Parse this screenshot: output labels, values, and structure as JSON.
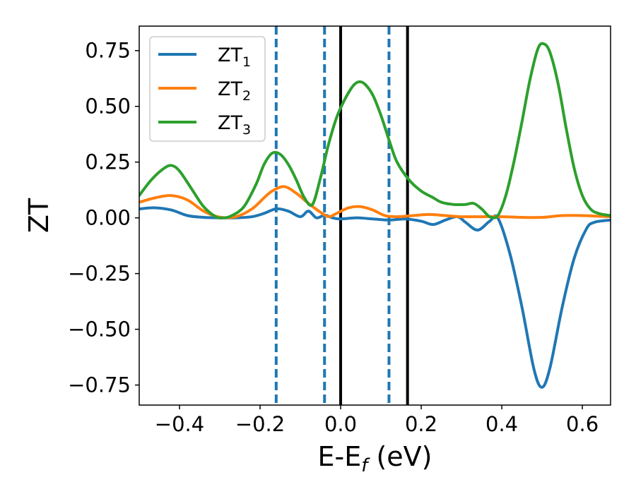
{
  "chart_data": {
    "type": "line",
    "xlabel": "E-E_f (eV)",
    "xlabel_parts": {
      "base": "E-E",
      "sub": "f",
      "suffix": " (eV)"
    },
    "ylabel": "ZT",
    "xlim": [
      -0.5,
      0.67
    ],
    "ylim": [
      -0.84,
      0.86
    ],
    "xticks": [
      -0.4,
      -0.2,
      0.0,
      0.2,
      0.4,
      0.6
    ],
    "xtick_labels": [
      "−0.4",
      "−0.2",
      "0.0",
      "0.2",
      "0.4",
      "0.6"
    ],
    "yticks": [
      0.75,
      0.5,
      0.25,
      0.0,
      -0.25,
      -0.5,
      -0.75
    ],
    "ytick_labels": [
      "0.75",
      "0.50",
      "0.25",
      "0.00",
      "−0.25",
      "−0.50",
      "−0.75"
    ],
    "grid": false,
    "legend_position": "top-left",
    "series": [
      {
        "name": "ZT_1",
        "legend_base": "ZT",
        "legend_sub": "1",
        "color": "#1f77b4",
        "x": [
          -0.5,
          -0.46,
          -0.42,
          -0.38,
          -0.34,
          -0.3,
          -0.26,
          -0.22,
          -0.19,
          -0.16,
          -0.13,
          -0.1,
          -0.08,
          -0.06,
          -0.04,
          -0.02,
          0.0,
          0.04,
          0.08,
          0.12,
          0.16,
          0.2,
          0.23,
          0.26,
          0.29,
          0.31,
          0.34,
          0.37,
          0.39,
          0.42,
          0.45,
          0.48,
          0.5,
          0.52,
          0.55,
          0.58,
          0.61,
          0.63,
          0.67
        ],
        "y": [
          0.04,
          0.045,
          0.035,
          0.01,
          0.002,
          0.0,
          0.0,
          0.005,
          0.02,
          0.04,
          0.03,
          0.005,
          0.03,
          0.0,
          0.012,
          0.0,
          -0.005,
          0.0,
          -0.005,
          -0.01,
          -0.005,
          -0.015,
          -0.03,
          -0.01,
          0.005,
          -0.02,
          -0.055,
          -0.015,
          0.0,
          -0.16,
          -0.4,
          -0.68,
          -0.76,
          -0.67,
          -0.4,
          -0.18,
          -0.05,
          -0.02,
          -0.01
        ]
      },
      {
        "name": "ZT_2",
        "legend_base": "ZT",
        "legend_sub": "2",
        "color": "#ff7f0e",
        "x": [
          -0.5,
          -0.46,
          -0.42,
          -0.38,
          -0.34,
          -0.3,
          -0.26,
          -0.22,
          -0.19,
          -0.17,
          -0.14,
          -0.11,
          -0.08,
          -0.05,
          -0.03,
          -0.01,
          0.02,
          0.05,
          0.08,
          0.11,
          0.14,
          0.18,
          0.22,
          0.26,
          0.3,
          0.35,
          0.4,
          0.45,
          0.5,
          0.55,
          0.6,
          0.67
        ],
        "y": [
          0.07,
          0.09,
          0.1,
          0.08,
          0.03,
          0.003,
          0.005,
          0.04,
          0.09,
          0.12,
          0.14,
          0.11,
          0.065,
          0.025,
          0.005,
          0.02,
          0.045,
          0.05,
          0.035,
          0.01,
          0.005,
          0.01,
          0.015,
          0.01,
          0.005,
          0.005,
          0.005,
          0.002,
          0.002,
          0.01,
          0.01,
          0.005
        ]
      },
      {
        "name": "ZT_3",
        "legend_base": "ZT",
        "legend_sub": "3",
        "color": "#2ca02c",
        "x": [
          -0.5,
          -0.47,
          -0.44,
          -0.42,
          -0.4,
          -0.37,
          -0.34,
          -0.31,
          -0.29,
          -0.27,
          -0.24,
          -0.21,
          -0.19,
          -0.17,
          -0.15,
          -0.13,
          -0.11,
          -0.09,
          -0.07,
          -0.05,
          -0.03,
          -0.01,
          0.01,
          0.03,
          0.045,
          0.06,
          0.08,
          0.1,
          0.12,
          0.14,
          0.17,
          0.2,
          0.23,
          0.25,
          0.28,
          0.31,
          0.33,
          0.35,
          0.37,
          0.39,
          0.41,
          0.43,
          0.45,
          0.47,
          0.49,
          0.505,
          0.52,
          0.54,
          0.56,
          0.58,
          0.6,
          0.62,
          0.64,
          0.67
        ],
        "y": [
          0.1,
          0.17,
          0.22,
          0.235,
          0.21,
          0.13,
          0.05,
          0.005,
          0.0,
          0.01,
          0.05,
          0.15,
          0.24,
          0.29,
          0.285,
          0.24,
          0.17,
          0.09,
          0.06,
          0.18,
          0.33,
          0.45,
          0.53,
          0.59,
          0.61,
          0.6,
          0.55,
          0.46,
          0.35,
          0.25,
          0.17,
          0.12,
          0.09,
          0.07,
          0.06,
          0.06,
          0.065,
          0.04,
          0.005,
          0.01,
          0.1,
          0.25,
          0.43,
          0.62,
          0.76,
          0.78,
          0.74,
          0.6,
          0.4,
          0.22,
          0.1,
          0.04,
          0.02,
          0.01
        ]
      }
    ],
    "vertical_lines": [
      {
        "x": -0.16,
        "style": "dashed",
        "color": "#1f77b4"
      },
      {
        "x": -0.04,
        "style": "dashed",
        "color": "#1f77b4"
      },
      {
        "x": 0.12,
        "style": "dashed",
        "color": "#1f77b4"
      },
      {
        "x": 0.0,
        "style": "solid",
        "color": "#000000"
      },
      {
        "x": 0.166,
        "style": "solid",
        "color": "#000000"
      }
    ]
  }
}
